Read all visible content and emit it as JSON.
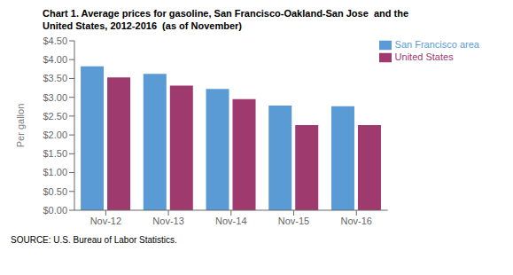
{
  "chart_data": {
    "type": "bar",
    "title": "Chart 1. Average prices for gasoline, San Francisco-Oakland-San Jose  and the",
    "subtitle": "United States, 2012-2016  (as of November)",
    "ylabel": "Per gallon",
    "annotations": [
      "SOURCE: U.S. Bureau of Labor Statistics."
    ],
    "categories": [
      "Nov-12",
      "Nov-13",
      "Nov-14",
      "Nov-15",
      "Nov-16"
    ],
    "series": [
      {
        "name": "San Francisco area",
        "color": "#5B9BD5",
        "values": [
          3.82,
          3.62,
          3.22,
          2.78,
          2.76
        ]
      },
      {
        "name": "United States",
        "color": "#9E3A6E",
        "values": [
          3.53,
          3.31,
          2.95,
          2.26,
          2.26
        ]
      }
    ],
    "ylim": [
      0,
      4.5
    ],
    "yticks": [
      {
        "value": 0,
        "label": "$0.00"
      },
      {
        "value": 0.5,
        "label": "$0.50"
      },
      {
        "value": 1.0,
        "label": "$1.00"
      },
      {
        "value": 1.5,
        "label": "$1.50"
      },
      {
        "value": 2.0,
        "label": "$2.00"
      },
      {
        "value": 2.5,
        "label": "$2.50"
      },
      {
        "value": 3.0,
        "label": "$3.00"
      },
      {
        "value": 3.5,
        "label": "$3.50"
      },
      {
        "value": 4.0,
        "label": "$4.00"
      },
      {
        "value": 4.5,
        "label": "$4.50"
      }
    ],
    "legend": "upper right",
    "grid": false
  }
}
